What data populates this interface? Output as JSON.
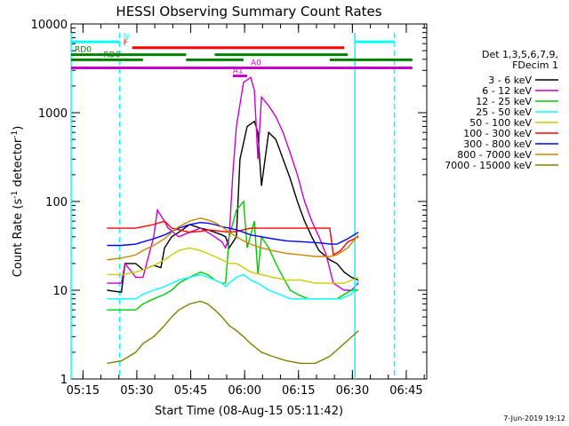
{
  "chart_data": {
    "type": "line",
    "title": "HESSI Observing Summary Count Rates",
    "xlabel": "Start Time (08-Aug-15 05:11:42)",
    "ylabel_text": "Count Rate (s",
    "ylabel_sup1": "-1",
    "ylabel_mid": " detector",
    "ylabel_sup2": "-1",
    "ylabel_end": ")",
    "footer": "7-Jun-2019 19:12",
    "x_ticks": [
      "05:15",
      "05:30",
      "05:45",
      "06:00",
      "06:15",
      "06:30",
      "06:45"
    ],
    "x_tick_minutes": [
      3.3,
      18.3,
      33.3,
      48.3,
      63.3,
      78.3,
      93.3
    ],
    "x_range_minutes": [
      0,
      99
    ],
    "y_scale": "log",
    "y_range": [
      1,
      10000
    ],
    "y_ticks": [
      "1",
      "10",
      "100",
      "1000",
      "10000"
    ],
    "y_tick_values": [
      1,
      10,
      100,
      1000,
      10000
    ],
    "legend_header": [
      "Det 1,3,5,6,7,9,",
      "FDecim 1"
    ],
    "series": [
      {
        "name": "3 - 6 keV",
        "color": "#000000",
        "points": [
          [
            10,
            10
          ],
          [
            14,
            9.5
          ],
          [
            15,
            20
          ],
          [
            18,
            20
          ],
          [
            20,
            17
          ],
          [
            23,
            19
          ],
          [
            25,
            18
          ],
          [
            26,
            30
          ],
          [
            28,
            40
          ],
          [
            30,
            45
          ],
          [
            33,
            55
          ],
          [
            36,
            50
          ],
          [
            38,
            48
          ],
          [
            40,
            45
          ],
          [
            42,
            42
          ],
          [
            43,
            40
          ],
          [
            44,
            30
          ],
          [
            46,
            40
          ],
          [
            47,
            300
          ],
          [
            49,
            700
          ],
          [
            51,
            800
          ],
          [
            52,
            600
          ],
          [
            53,
            150
          ],
          [
            55,
            600
          ],
          [
            57,
            500
          ],
          [
            59,
            300
          ],
          [
            61,
            180
          ],
          [
            63,
            100
          ],
          [
            65,
            60
          ],
          [
            67,
            40
          ],
          [
            69,
            28
          ],
          [
            72,
            22
          ],
          [
            74,
            20
          ],
          [
            76,
            16
          ],
          [
            78,
            14
          ],
          [
            80,
            13
          ]
        ]
      },
      {
        "name": "6 - 12 keV",
        "color": "#cc00cc",
        "points": [
          [
            10,
            12
          ],
          [
            14,
            12
          ],
          [
            15,
            20
          ],
          [
            18,
            14
          ],
          [
            20,
            14
          ],
          [
            23,
            40
          ],
          [
            24,
            80
          ],
          [
            26,
            60
          ],
          [
            27,
            50
          ],
          [
            30,
            40
          ],
          [
            33,
            45
          ],
          [
            36,
            50
          ],
          [
            38,
            45
          ],
          [
            40,
            40
          ],
          [
            42,
            35
          ],
          [
            43,
            30
          ],
          [
            44,
            40
          ],
          [
            45,
            200
          ],
          [
            46,
            700
          ],
          [
            48,
            2200
          ],
          [
            50,
            2500
          ],
          [
            51,
            1800
          ],
          [
            52,
            300
          ],
          [
            53,
            1500
          ],
          [
            55,
            1200
          ],
          [
            57,
            900
          ],
          [
            59,
            600
          ],
          [
            61,
            350
          ],
          [
            63,
            200
          ],
          [
            65,
            100
          ],
          [
            67,
            60
          ],
          [
            69,
            40
          ],
          [
            71,
            25
          ],
          [
            73,
            12
          ],
          [
            76,
            10
          ],
          [
            78,
            10
          ],
          [
            80,
            12
          ]
        ]
      },
      {
        "name": "12 - 25 keV",
        "color": "#00cc00",
        "points": [
          [
            10,
            6
          ],
          [
            14,
            6
          ],
          [
            15,
            6
          ],
          [
            18,
            6
          ],
          [
            20,
            7
          ],
          [
            23,
            8
          ],
          [
            26,
            9
          ],
          [
            28,
            10
          ],
          [
            30,
            12
          ],
          [
            33,
            14
          ],
          [
            36,
            16
          ],
          [
            38,
            15
          ],
          [
            40,
            13
          ],
          [
            42,
            12
          ],
          [
            43,
            12
          ],
          [
            44,
            40
          ],
          [
            46,
            80
          ],
          [
            48,
            100
          ],
          [
            49,
            30
          ],
          [
            51,
            60
          ],
          [
            52,
            15
          ],
          [
            53,
            40
          ],
          [
            55,
            30
          ],
          [
            57,
            20
          ],
          [
            59,
            14
          ],
          [
            61,
            10
          ],
          [
            63,
            9
          ],
          [
            66,
            8
          ],
          [
            70,
            8
          ],
          [
            74,
            8
          ],
          [
            78,
            10
          ],
          [
            80,
            10
          ]
        ]
      },
      {
        "name": "25 - 50 keV",
        "color": "#00ffff",
        "points": [
          [
            10,
            8
          ],
          [
            14,
            8
          ],
          [
            18,
            8
          ],
          [
            20,
            9
          ],
          [
            23,
            10
          ],
          [
            26,
            11
          ],
          [
            28,
            12
          ],
          [
            30,
            13
          ],
          [
            33,
            14
          ],
          [
            36,
            15
          ],
          [
            38,
            14
          ],
          [
            40,
            13
          ],
          [
            42,
            12
          ],
          [
            43,
            11
          ],
          [
            44,
            12
          ],
          [
            46,
            14
          ],
          [
            48,
            15
          ],
          [
            50,
            13
          ],
          [
            52,
            12
          ],
          [
            55,
            10
          ],
          [
            58,
            9
          ],
          [
            61,
            8
          ],
          [
            65,
            8
          ],
          [
            70,
            8
          ],
          [
            75,
            8
          ],
          [
            78,
            9
          ],
          [
            80,
            13
          ]
        ]
      },
      {
        "name": "50 - 100 keV",
        "color": "#cccc00",
        "points": [
          [
            10,
            15
          ],
          [
            14,
            15
          ],
          [
            18,
            16
          ],
          [
            20,
            17
          ],
          [
            23,
            19
          ],
          [
            26,
            22
          ],
          [
            28,
            25
          ],
          [
            30,
            28
          ],
          [
            33,
            30
          ],
          [
            36,
            28
          ],
          [
            38,
            26
          ],
          [
            40,
            24
          ],
          [
            42,
            22
          ],
          [
            44,
            20
          ],
          [
            46,
            20
          ],
          [
            48,
            18
          ],
          [
            50,
            16
          ],
          [
            53,
            15
          ],
          [
            56,
            14
          ],
          [
            60,
            13
          ],
          [
            64,
            13
          ],
          [
            68,
            12
          ],
          [
            72,
            12
          ],
          [
            76,
            12
          ],
          [
            80,
            14
          ]
        ]
      },
      {
        "name": "100 - 300 keV",
        "color": "#ff0000",
        "points": [
          [
            10,
            50
          ],
          [
            14,
            50
          ],
          [
            18,
            50
          ],
          [
            20,
            52
          ],
          [
            23,
            55
          ],
          [
            26,
            60
          ],
          [
            28,
            50
          ],
          [
            30,
            48
          ],
          [
            33,
            45
          ],
          [
            36,
            46
          ],
          [
            38,
            48
          ],
          [
            40,
            47
          ],
          [
            42,
            46
          ],
          [
            44,
            45
          ],
          [
            46,
            46
          ],
          [
            48,
            48
          ],
          [
            50,
            50
          ],
          [
            53,
            50
          ],
          [
            56,
            50
          ],
          [
            60,
            50
          ],
          [
            65,
            50
          ],
          [
            70,
            50
          ],
          [
            72,
            50
          ],
          [
            73,
            25
          ],
          [
            75,
            28
          ],
          [
            77,
            35
          ],
          [
            80,
            40
          ]
        ]
      },
      {
        "name": "300 - 800 keV",
        "color": "#0000ff",
        "points": [
          [
            10,
            32
          ],
          [
            14,
            32
          ],
          [
            18,
            33
          ],
          [
            20,
            35
          ],
          [
            23,
            38
          ],
          [
            26,
            42
          ],
          [
            28,
            46
          ],
          [
            30,
            50
          ],
          [
            33,
            55
          ],
          [
            36,
            58
          ],
          [
            38,
            57
          ],
          [
            40,
            55
          ],
          [
            42,
            52
          ],
          [
            44,
            50
          ],
          [
            46,
            48
          ],
          [
            48,
            45
          ],
          [
            50,
            42
          ],
          [
            53,
            40
          ],
          [
            56,
            38
          ],
          [
            60,
            36
          ],
          [
            65,
            35
          ],
          [
            70,
            34
          ],
          [
            72,
            33
          ],
          [
            74,
            33
          ],
          [
            77,
            38
          ],
          [
            80,
            45
          ]
        ]
      },
      {
        "name": "800 - 7000 keV",
        "color": "#cc8800",
        "points": [
          [
            10,
            22
          ],
          [
            14,
            23
          ],
          [
            18,
            25
          ],
          [
            20,
            28
          ],
          [
            23,
            32
          ],
          [
            26,
            38
          ],
          [
            28,
            45
          ],
          [
            30,
            52
          ],
          [
            33,
            60
          ],
          [
            36,
            65
          ],
          [
            38,
            62
          ],
          [
            40,
            58
          ],
          [
            42,
            52
          ],
          [
            44,
            45
          ],
          [
            46,
            40
          ],
          [
            48,
            36
          ],
          [
            50,
            33
          ],
          [
            53,
            30
          ],
          [
            56,
            28
          ],
          [
            60,
            26
          ],
          [
            64,
            25
          ],
          [
            68,
            24
          ],
          [
            72,
            24
          ],
          [
            74,
            25
          ],
          [
            77,
            30
          ],
          [
            80,
            42
          ]
        ]
      },
      {
        "name": "7000 - 15000 keV",
        "color": "#808000",
        "points": [
          [
            10,
            1.5
          ],
          [
            14,
            1.6
          ],
          [
            18,
            2
          ],
          [
            20,
            2.5
          ],
          [
            23,
            3
          ],
          [
            26,
            4
          ],
          [
            28,
            5
          ],
          [
            30,
            6
          ],
          [
            33,
            7
          ],
          [
            36,
            7.5
          ],
          [
            38,
            7
          ],
          [
            40,
            6
          ],
          [
            42,
            5
          ],
          [
            44,
            4
          ],
          [
            46,
            3.5
          ],
          [
            48,
            3
          ],
          [
            50,
            2.5
          ],
          [
            53,
            2
          ],
          [
            56,
            1.8
          ],
          [
            60,
            1.6
          ],
          [
            64,
            1.5
          ],
          [
            68,
            1.5
          ],
          [
            72,
            1.8
          ],
          [
            76,
            2.5
          ],
          [
            80,
            3.5
          ]
        ]
      }
    ],
    "flags": [
      {
        "label": "N",
        "color": "#00ffff",
        "segments": [
          [
            0,
            13.5
          ],
          [
            79,
            90
          ]
        ],
        "label_at": 14.5,
        "level": 6300
      },
      {
        "label": "F",
        "color": "#ff0000",
        "segments": [
          [
            17,
            76
          ]
        ],
        "label_at": 14.5,
        "level": 5400
      },
      {
        "label": "RD0",
        "color": "#008000",
        "segments": [
          [
            0,
            7
          ],
          [
            7,
            32
          ],
          [
            40,
            77
          ]
        ],
        "label_at": 1,
        "level": 4500
      },
      {
        "label": "RD6",
        "color": "#008000",
        "segments": [
          [
            0,
            9
          ],
          [
            9,
            20
          ],
          [
            32,
            48
          ],
          [
            72,
            95
          ]
        ],
        "label_at": 9,
        "level": 3950
      },
      {
        "label": "A1",
        "color": "#cc00cc",
        "segments": [
          [
            45,
            49
          ]
        ],
        "label_at": 45,
        "level": 2600
      },
      {
        "label": "A0",
        "color": "#cc00cc",
        "segments": [
          [
            0,
            95
          ]
        ],
        "label_at": 50,
        "level": 3200
      }
    ],
    "saa_lines": [
      {
        "color": "#00ffff",
        "minute": 13.5,
        "style": "dashed"
      },
      {
        "color": "#00ffff",
        "minute": 79,
        "style": "solid"
      },
      {
        "color": "#00ffff",
        "minute": 90,
        "style": "dashed"
      },
      {
        "color": "#00ffff",
        "minute": 0,
        "style": "solid"
      }
    ]
  }
}
